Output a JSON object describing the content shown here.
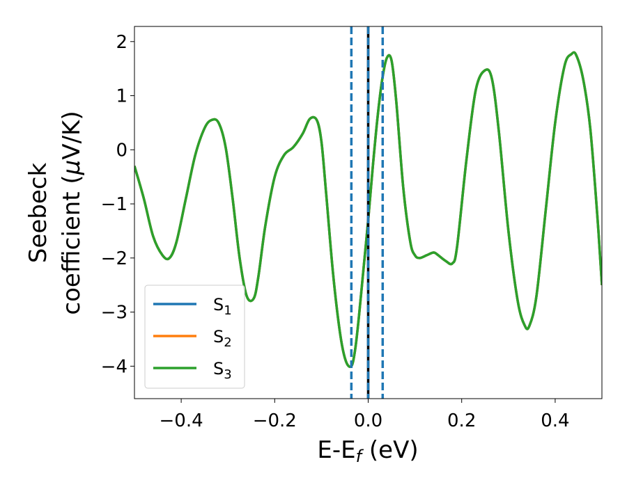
{
  "chart_data": {
    "type": "line",
    "xlabel": "E-E",
    "xlabel_sub": "f",
    "xlabel_unit": " (eV)",
    "ylabel_line1": "Seebeck",
    "ylabel_line2": "coefficient  (",
    "ylabel_mu": "μ",
    "ylabel_unit": "V/K)",
    "xlim": [
      -0.5,
      0.5
    ],
    "ylim": [
      -4.6,
      2.28
    ],
    "xticks": [
      -0.4,
      -0.2,
      0.0,
      0.2,
      0.4
    ],
    "xtick_labels": [
      "−0.4",
      "−0.2",
      "0.0",
      "0.2",
      "0.4"
    ],
    "yticks": [
      2,
      1,
      0,
      -1,
      -2,
      -3,
      -4
    ],
    "ytick_labels": [
      "2",
      "1",
      "0",
      "−1",
      "−2",
      "−3",
      "−4"
    ],
    "grid": false,
    "legend_position": "lower-left",
    "vlines": [
      {
        "x": -0.036,
        "color": "#1f77b4",
        "style": "dashed"
      },
      {
        "x": 0.0,
        "color": "#000000",
        "style": "solid"
      },
      {
        "x": 0.0,
        "color": "#1f77b4",
        "style": "dashed"
      },
      {
        "x": 0.031,
        "color": "#1f77b4",
        "style": "dashed"
      }
    ],
    "series": [
      {
        "name": "S",
        "sub": "1",
        "color": "#1f77b4"
      },
      {
        "name": "S",
        "sub": "2",
        "color": "#ff7f0e"
      },
      {
        "name": "S",
        "sub": "3",
        "color": "#2ca02c"
      }
    ],
    "x": [
      -0.5,
      -0.48,
      -0.46,
      -0.44,
      -0.425,
      -0.41,
      -0.39,
      -0.37,
      -0.35,
      -0.335,
      -0.32,
      -0.305,
      -0.29,
      -0.275,
      -0.26,
      -0.245,
      -0.235,
      -0.22,
      -0.2,
      -0.18,
      -0.16,
      -0.14,
      -0.125,
      -0.11,
      -0.1,
      -0.09,
      -0.075,
      -0.06,
      -0.048,
      -0.036,
      -0.028,
      -0.02,
      -0.01,
      0.0,
      0.01,
      0.02,
      0.03,
      0.04,
      0.05,
      0.06,
      0.075,
      0.09,
      0.1,
      0.11,
      0.125,
      0.14,
      0.15,
      0.165,
      0.18,
      0.19,
      0.21,
      0.23,
      0.25,
      0.265,
      0.28,
      0.3,
      0.32,
      0.335,
      0.345,
      0.36,
      0.38,
      0.4,
      0.42,
      0.435,
      0.445,
      0.46,
      0.475,
      0.49,
      0.5
    ],
    "y": [
      -0.3,
      -0.9,
      -1.6,
      -1.95,
      -2.0,
      -1.7,
      -0.9,
      -0.1,
      0.4,
      0.55,
      0.5,
      0.05,
      -0.9,
      -2.0,
      -2.7,
      -2.75,
      -2.35,
      -1.4,
      -0.5,
      -0.1,
      0.05,
      0.3,
      0.57,
      0.55,
      0.15,
      -0.8,
      -2.3,
      -3.4,
      -3.9,
      -4.0,
      -3.7,
      -3.1,
      -2.2,
      -1.3,
      -0.3,
      0.6,
      1.3,
      1.7,
      1.65,
      0.9,
      -0.7,
      -1.7,
      -1.95,
      -2.0,
      -1.95,
      -1.9,
      -1.95,
      -2.05,
      -2.1,
      -1.8,
      -0.2,
      1.1,
      1.47,
      1.3,
      0.3,
      -1.5,
      -2.8,
      -3.25,
      -3.25,
      -2.7,
      -1.1,
      0.5,
      1.55,
      1.77,
      1.75,
      1.3,
      0.4,
      -1.2,
      -2.5
    ]
  }
}
